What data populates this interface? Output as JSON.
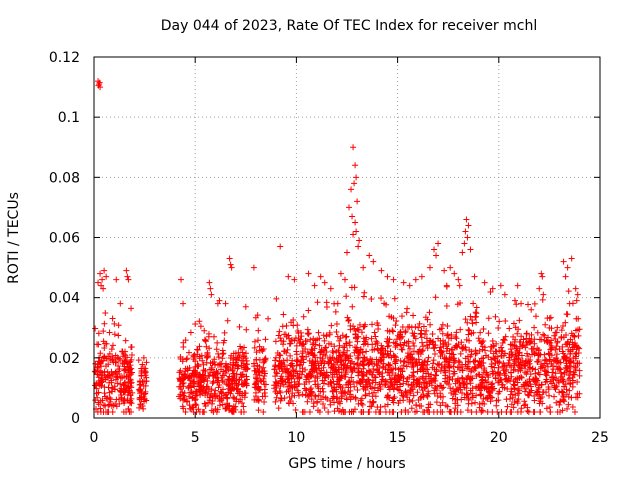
{
  "chart_data": {
    "type": "scatter",
    "title": "Day 044 of 2023, Rate Of TEC Index for receiver mchl",
    "xlabel": "GPS time / hours",
    "ylabel": "ROTI / TECUs",
    "xlim": [
      0,
      25
    ],
    "ylim": [
      0,
      0.12
    ],
    "xticks": [
      0,
      5,
      10,
      15,
      20,
      25
    ],
    "xtick_labels": [
      "0",
      "5",
      "10",
      "15",
      "20",
      "25"
    ],
    "yticks": [
      0,
      0.02,
      0.04,
      0.06,
      0.08,
      0.1,
      0.12
    ],
    "ytick_labels": [
      "0",
      "0.02",
      "0.04",
      "0.06",
      "0.08",
      "0.1",
      "0.12"
    ],
    "grid": true,
    "marker": "+",
    "color": "#ff0000",
    "series": [
      {
        "name": "ROTI",
        "segments": [
          {
            "start": 0.0,
            "end": 1.9,
            "base": 0.014,
            "spread": 0.012
          },
          {
            "start": 2.2,
            "end": 2.6,
            "base": 0.011,
            "spread": 0.008
          },
          {
            "start": 4.2,
            "end": 7.6,
            "base": 0.012,
            "spread": 0.011
          },
          {
            "start": 7.9,
            "end": 8.5,
            "base": 0.013,
            "spread": 0.01
          },
          {
            "start": 8.9,
            "end": 24.0,
            "base": 0.016,
            "spread": 0.014
          }
        ],
        "points": [
          [
            0.2,
            0.112
          ],
          [
            0.25,
            0.111
          ],
          [
            0.3,
            0.11
          ],
          [
            0.22,
            0.1105
          ],
          [
            0.28,
            0.1115
          ],
          [
            12.8,
            0.09
          ],
          [
            12.9,
            0.084
          ],
          [
            12.95,
            0.08
          ],
          [
            12.85,
            0.078
          ],
          [
            12.7,
            0.076
          ],
          [
            12.6,
            0.07
          ],
          [
            12.75,
            0.067
          ],
          [
            13.0,
            0.072
          ],
          [
            12.9,
            0.065
          ],
          [
            12.8,
            0.061
          ],
          [
            13.1,
            0.059
          ],
          [
            13.05,
            0.057
          ],
          [
            12.95,
            0.062
          ],
          [
            12.5,
            0.055
          ],
          [
            13.3,
            0.05
          ],
          [
            18.4,
            0.066
          ],
          [
            18.5,
            0.064
          ],
          [
            18.35,
            0.062
          ],
          [
            18.45,
            0.06
          ],
          [
            18.3,
            0.058
          ],
          [
            18.6,
            0.056
          ],
          [
            18.2,
            0.055
          ],
          [
            17.0,
            0.058
          ],
          [
            16.8,
            0.056
          ],
          [
            16.9,
            0.054
          ],
          [
            9.2,
            0.057
          ],
          [
            6.7,
            0.053
          ],
          [
            6.75,
            0.051
          ],
          [
            6.8,
            0.05
          ],
          [
            7.9,
            0.05
          ],
          [
            0.3,
            0.048
          ],
          [
            0.5,
            0.049
          ],
          [
            0.4,
            0.046
          ],
          [
            0.2,
            0.045
          ],
          [
            0.6,
            0.047
          ],
          [
            0.35,
            0.044
          ],
          [
            0.45,
            0.043
          ],
          [
            1.6,
            0.049
          ],
          [
            1.65,
            0.047
          ],
          [
            1.7,
            0.046
          ],
          [
            1.1,
            0.046
          ],
          [
            1.3,
            0.038
          ],
          [
            4.3,
            0.046
          ],
          [
            4.4,
            0.038
          ],
          [
            5.7,
            0.045
          ],
          [
            5.75,
            0.043
          ],
          [
            5.8,
            0.041
          ],
          [
            6.2,
            0.039
          ],
          [
            6.5,
            0.038
          ],
          [
            7.5,
            0.037
          ],
          [
            8.6,
            0.033
          ],
          [
            9.6,
            0.047
          ],
          [
            9.9,
            0.046
          ],
          [
            10.6,
            0.048
          ],
          [
            11.2,
            0.047
          ],
          [
            10.9,
            0.044
          ],
          [
            11.4,
            0.045
          ],
          [
            11.7,
            0.043
          ],
          [
            12.2,
            0.048
          ],
          [
            12.4,
            0.046
          ],
          [
            13.6,
            0.054
          ],
          [
            13.8,
            0.052
          ],
          [
            14.2,
            0.049
          ],
          [
            14.5,
            0.047
          ],
          [
            14.8,
            0.046
          ],
          [
            15.3,
            0.045
          ],
          [
            15.6,
            0.044
          ],
          [
            15.9,
            0.046
          ],
          [
            16.2,
            0.047
          ],
          [
            16.6,
            0.05
          ],
          [
            17.3,
            0.049
          ],
          [
            17.6,
            0.05
          ],
          [
            17.8,
            0.048
          ],
          [
            18.0,
            0.046
          ],
          [
            18.8,
            0.047
          ],
          [
            19.3,
            0.045
          ],
          [
            19.7,
            0.043
          ],
          [
            20.1,
            0.044
          ],
          [
            20.3,
            0.041
          ],
          [
            20.8,
            0.039
          ],
          [
            21.1,
            0.038
          ],
          [
            21.6,
            0.036
          ],
          [
            22.0,
            0.043
          ],
          [
            22.1,
            0.048
          ],
          [
            22.15,
            0.047
          ],
          [
            22.2,
            0.041
          ],
          [
            23.2,
            0.052
          ],
          [
            23.4,
            0.05
          ],
          [
            23.6,
            0.053
          ],
          [
            23.3,
            0.047
          ],
          [
            23.8,
            0.043
          ],
          [
            23.9,
            0.041
          ],
          [
            23.85,
            0.039
          ],
          [
            23.5,
            0.038
          ],
          [
            0.1,
            0.003
          ],
          [
            1.7,
            0.003
          ],
          [
            1.75,
            0.002
          ],
          [
            2.4,
            0.004
          ],
          [
            4.8,
            0.003
          ],
          [
            6.0,
            0.003
          ]
        ]
      }
    ]
  }
}
